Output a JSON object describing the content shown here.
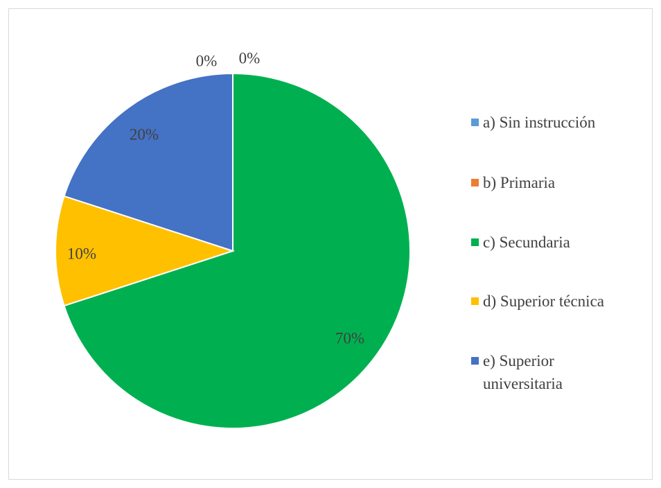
{
  "chart_data": {
    "type": "pie",
    "categories": [
      "a) Sin instrucción",
      "b) Primaria",
      "c) Secundaria",
      "d) Superior técnica",
      "e) Superior universitaria"
    ],
    "values": [
      0,
      0,
      70,
      10,
      20
    ],
    "value_labels": [
      "0%",
      "0%",
      "70%",
      "10%",
      "20%"
    ],
    "colors": [
      "#5b9bd5",
      "#ed7d31",
      "#00b050",
      "#ffc000",
      "#4472c4"
    ],
    "legend": "right"
  }
}
